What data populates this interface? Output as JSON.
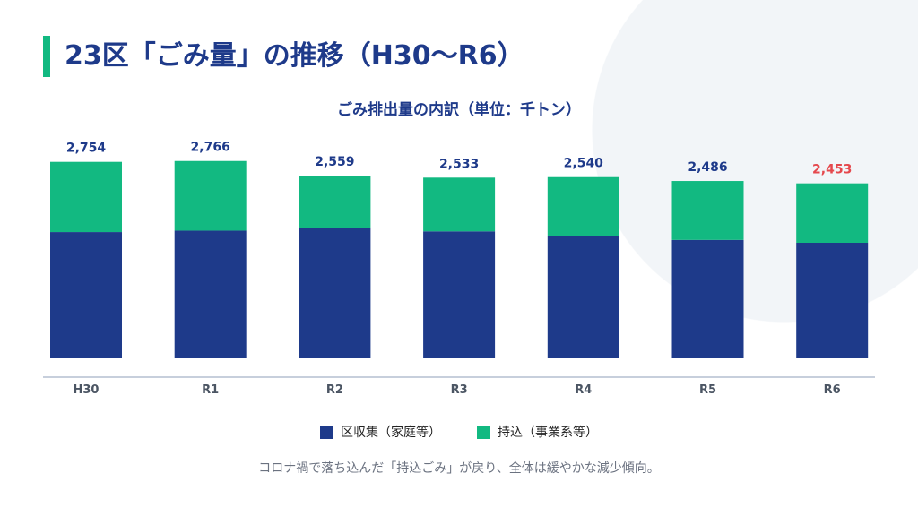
{
  "title": "23区「ごみ量」の推移（H30〜R6）",
  "note": "コロナ禍で落ち込んだ「持込ごみ」が戻り、全体は緩やかな減少傾向。",
  "colors": {
    "collected": "#1e3a8a",
    "brought_in": "#12b981",
    "highlight_label": "#e5484d",
    "label": "#1e3a8a",
    "accent": "#12b981"
  },
  "chart_data": {
    "type": "bar",
    "stacked": true,
    "title": "ごみ排出量の内訳（単位：千トン）",
    "categories": [
      "H30",
      "R1",
      "R2",
      "R3",
      "R4",
      "R5",
      "R6"
    ],
    "totals": [
      "2,754",
      "2,766",
      "2,559",
      "2,533",
      "2,540",
      "2,486",
      "2,453"
    ],
    "series": [
      {
        "name": "区収集（家庭等）",
        "values": [
          1770,
          1790,
          1830,
          1780,
          1720,
          1660,
          1620
        ]
      },
      {
        "name": "持込（事業系等）",
        "values": [
          984,
          976,
          729,
          753,
          820,
          826,
          833
        ]
      }
    ],
    "ylim": [
      0,
      2800
    ],
    "grid": false,
    "legend": "bottom",
    "highlight_category": "R6"
  }
}
